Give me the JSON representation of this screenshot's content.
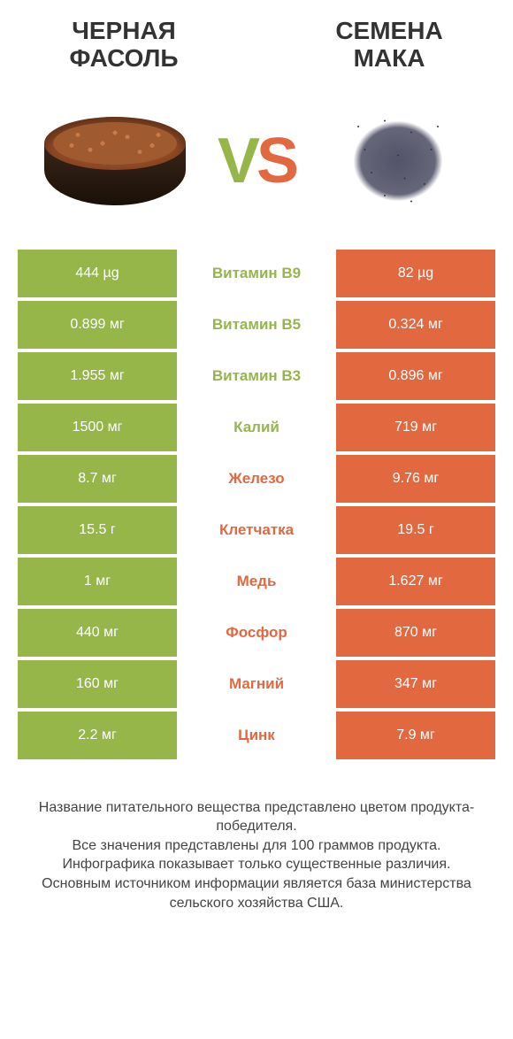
{
  "colors": {
    "green": "#96b64a",
    "orange": "#e2683f",
    "text": "#333333"
  },
  "header": {
    "left_title": "ЧЕРНАЯ ФАСОЛЬ",
    "right_title": "СЕМЕНА МАКА",
    "vs_v": "V",
    "vs_s": "S"
  },
  "rows": [
    {
      "left": "444 µg",
      "mid": "Витамин B9",
      "right": "82 µg",
      "winner": "left"
    },
    {
      "left": "0.899 мг",
      "mid": "Витамин B5",
      "right": "0.324 мг",
      "winner": "left"
    },
    {
      "left": "1.955 мг",
      "mid": "Витамин B3",
      "right": "0.896 мг",
      "winner": "left"
    },
    {
      "left": "1500 мг",
      "mid": "Калий",
      "right": "719 мг",
      "winner": "left"
    },
    {
      "left": "8.7 мг",
      "mid": "Железо",
      "right": "9.76 мг",
      "winner": "right"
    },
    {
      "left": "15.5 г",
      "mid": "Клетчатка",
      "right": "19.5 г",
      "winner": "right"
    },
    {
      "left": "1 мг",
      "mid": "Медь",
      "right": "1.627 мг",
      "winner": "right"
    },
    {
      "left": "440 мг",
      "mid": "Фосфор",
      "right": "870 мг",
      "winner": "right"
    },
    {
      "left": "160 мг",
      "mid": "Магний",
      "right": "347 мг",
      "winner": "right"
    },
    {
      "left": "2.2 мг",
      "mid": "Цинк",
      "right": "7.9 мг",
      "winner": "right"
    }
  ],
  "footer": {
    "line1": "Название питательного вещества представлено цветом продукта-победителя.",
    "line2": "Все значения представлены для 100 граммов продукта.",
    "line3": "Инфографика показывает только существенные различия.",
    "line4": "Основным источником информации является база министерства сельского хозяйства США."
  }
}
